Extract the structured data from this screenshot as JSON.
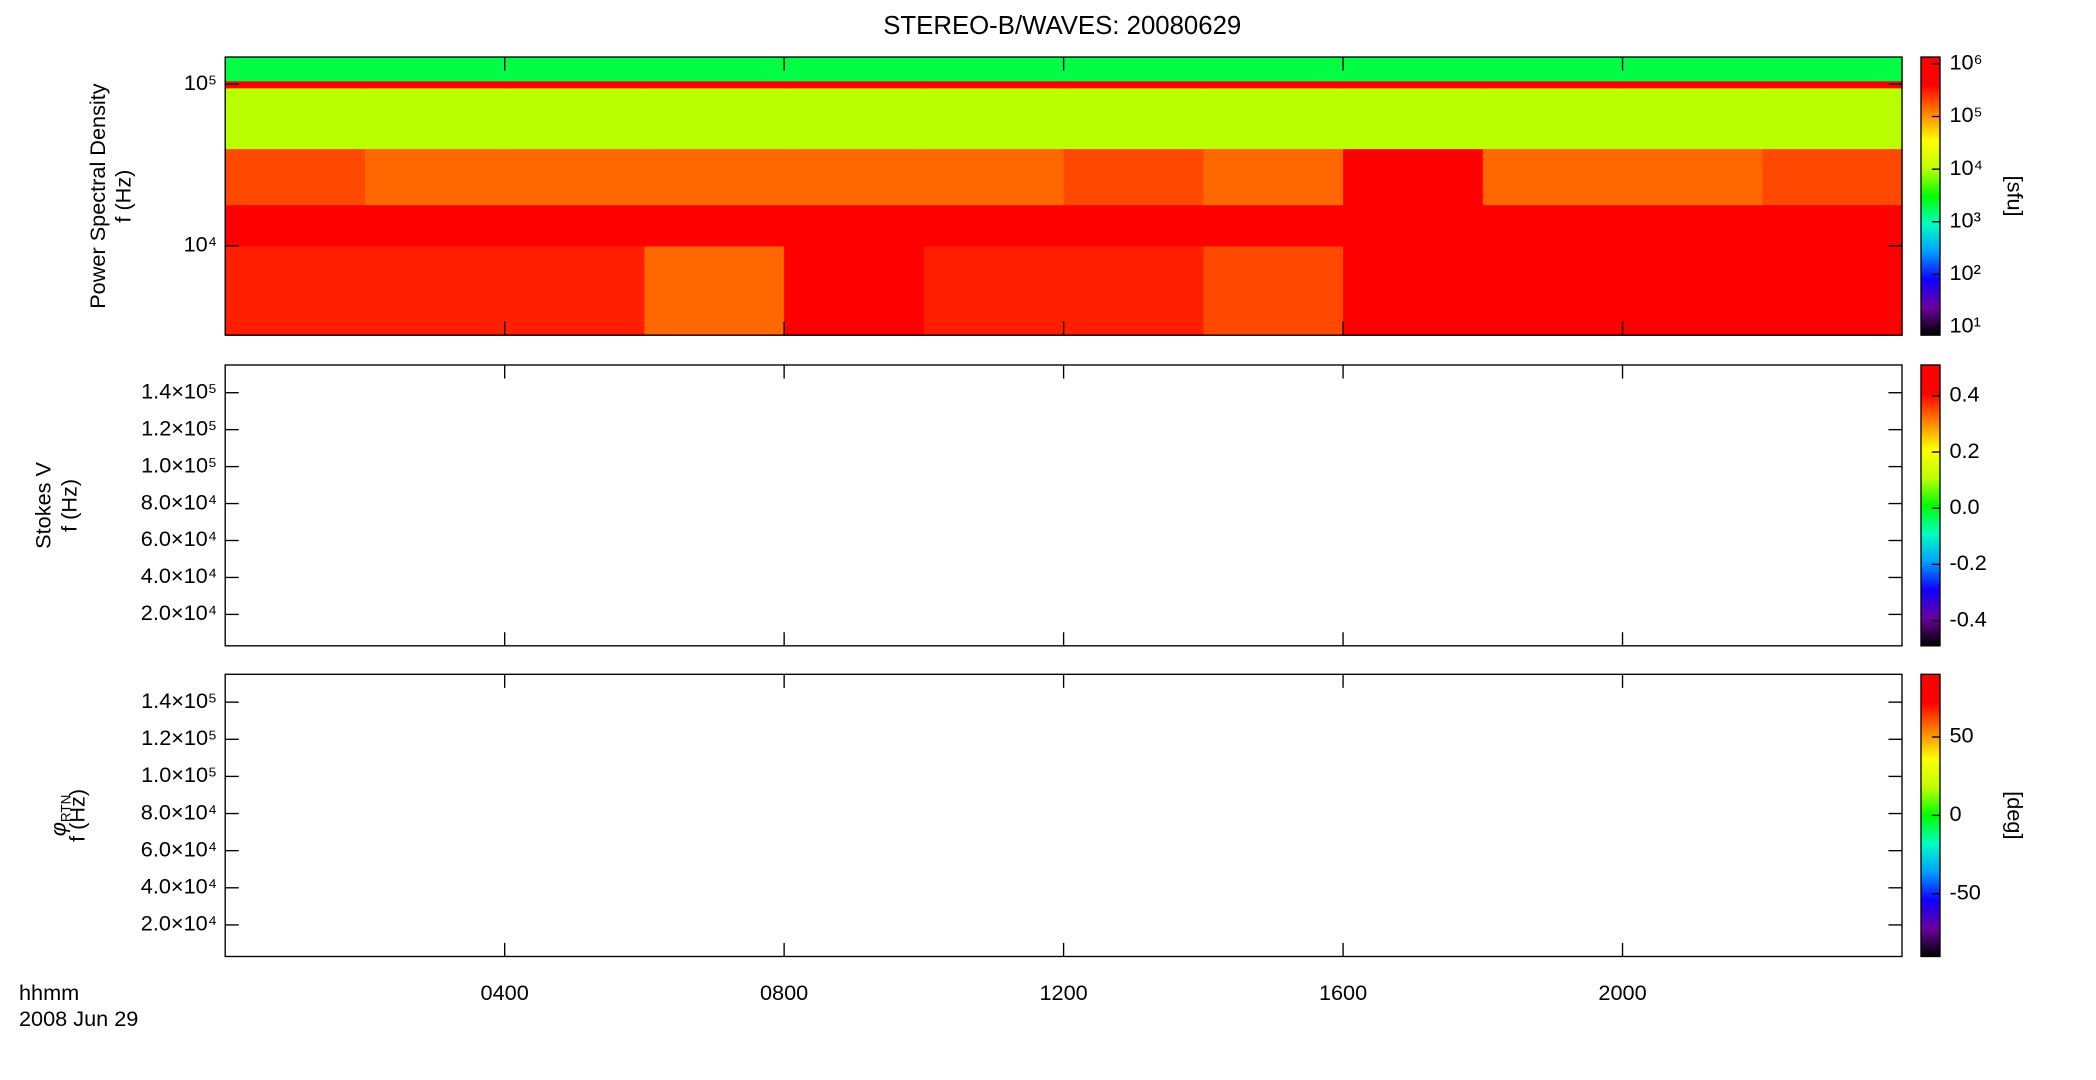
{
  "chart_data": [
    {
      "type": "heatmap",
      "title": "STEREO-B/WAVES: 20080629",
      "ylabel": "Power Spectral Density",
      "ylabel_unit": "f (Hz)",
      "ylog": true,
      "ylim": [
        2800,
        147000
      ],
      "yticks": [
        {
          "value": 10000,
          "label": "10⁴"
        },
        {
          "value": 100000,
          "label": "10⁵"
        }
      ],
      "x_edges": [
        0,
        2,
        4,
        6,
        8,
        10,
        12,
        14,
        16,
        18,
        20,
        22,
        24
      ],
      "y_edges": [
        2800,
        10000,
        18000,
        40000,
        95000,
        105000,
        147000
      ],
      "z": [
        [
          300000,
          300000,
          300000,
          150000,
          500000,
          300000,
          300000,
          200000,
          1000000,
          400000,
          400000,
          400000
        ],
        [
          1000000,
          1000000,
          1000000,
          1000000,
          1000000,
          1000000,
          1000000,
          1000000,
          1000000,
          1000000,
          1000000,
          1000000
        ],
        [
          200000,
          150000,
          150000,
          150000,
          150000,
          150000,
          200000,
          150000,
          400000,
          150000,
          150000,
          200000
        ],
        [
          10000,
          10000,
          10000,
          10000,
          10000,
          10000,
          10000,
          10000,
          10000,
          10000,
          10000,
          10000
        ],
        [
          1000000,
          1000000,
          1000000,
          1000000,
          1000000,
          1000000,
          1000000,
          1000000,
          1000000,
          1000000,
          1000000,
          1000000
        ],
        [
          2000,
          2000,
          2000,
          2000,
          2000,
          2000,
          2000,
          2000,
          2000,
          2000,
          2000,
          2000
        ]
      ],
      "colormap": [
        "#000000",
        "#6a00a0",
        "#1000ff",
        "#00a0ff",
        "#00ffc0",
        "#00ff00",
        "#c0ff00",
        "#ffff00",
        "#ff8000",
        "#ff0000",
        "#ff0000"
      ],
      "zlog": true,
      "zlim": [
        7,
        1350000
      ],
      "zlabel": "[sfu]",
      "zticks": [
        {
          "value": 10,
          "label": "10¹"
        },
        {
          "value": 100,
          "label": "10²"
        },
        {
          "value": 1000,
          "label": "10³"
        },
        {
          "value": 10000,
          "label": "10⁴"
        },
        {
          "value": 100000,
          "label": "10⁵"
        },
        {
          "value": 1000000,
          "label": "10⁶"
        }
      ]
    },
    {
      "type": "heatmap",
      "ylabel": "Stokes V",
      "ylabel_unit": "f (Hz)",
      "ylog": false,
      "ylim": [
        3000,
        155000
      ],
      "yticks": [
        {
          "value": 20000,
          "label": "2.0×10⁴"
        },
        {
          "value": 40000,
          "label": "4.0×10⁴"
        },
        {
          "value": 60000,
          "label": "6.0×10⁴"
        },
        {
          "value": 80000,
          "label": "8.0×10⁴"
        },
        {
          "value": 100000,
          "label": "1.0×10⁵"
        },
        {
          "value": 120000,
          "label": "1.2×10⁵"
        },
        {
          "value": 140000,
          "label": "1.4×10⁵"
        }
      ],
      "colormap": [
        "#000000",
        "#6a00a0",
        "#1000ff",
        "#00a0ff",
        "#00ffc0",
        "#00ff00",
        "#c0ff00",
        "#ffff00",
        "#ff8000",
        "#ff0000",
        "#ff0000"
      ],
      "zlog": false,
      "zlim": [
        -0.49,
        0.51
      ],
      "zticks": [
        -0.4,
        -0.2,
        {
          "value": 0,
          "label": "0.0"
        },
        0.2,
        0.4
      ]
    },
    {
      "type": "heatmap",
      "ylabel": "φ",
      "ylabel_subscript": "RTN",
      "ylabel_unit": "f (Hz)",
      "ylog": false,
      "ylim": [
        3000,
        155000
      ],
      "yticks": [
        {
          "value": 20000,
          "label": "2.0×10⁴"
        },
        {
          "value": 40000,
          "label": "4.0×10⁴"
        },
        {
          "value": 60000,
          "label": "6.0×10⁴"
        },
        {
          "value": 80000,
          "label": "8.0×10⁴"
        },
        {
          "value": 100000,
          "label": "1.0×10⁵"
        },
        {
          "value": 120000,
          "label": "1.2×10⁵"
        },
        {
          "value": 140000,
          "label": "1.4×10⁵"
        }
      ],
      "colormap": [
        "#000000",
        "#6a00a0",
        "#1000ff",
        "#00a0ff",
        "#00ffc0",
        "#00ff00",
        "#c0ff00",
        "#ffff00",
        "#ff8000",
        "#ff0000",
        "#ff0000"
      ],
      "zlog": false,
      "zlim": [
        -90,
        90
      ],
      "zlabel": "[deg]",
      "zticks": [
        -50,
        0,
        50
      ],
      "xlim": [
        0,
        24
      ],
      "xticks": [
        {
          "value": 4,
          "label": "0400"
        },
        {
          "value": 8,
          "label": "0800"
        },
        {
          "value": 12,
          "label": "1200"
        },
        {
          "value": 16,
          "label": "1600"
        },
        {
          "value": 20,
          "label": "2000"
        }
      ],
      "xlabel": "hhmm",
      "xlabel_date": "2008 Jun 29"
    }
  ]
}
